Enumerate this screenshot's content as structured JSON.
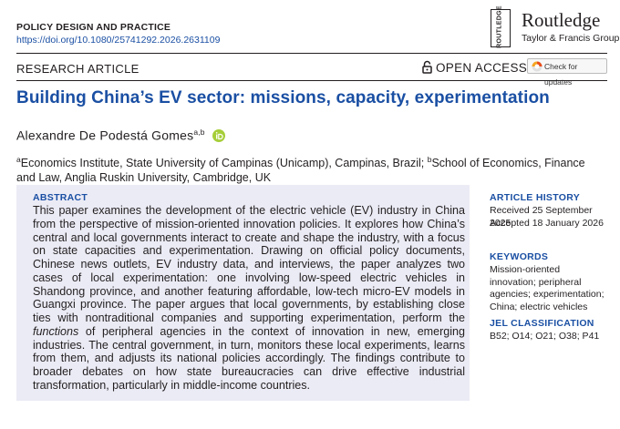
{
  "header": {
    "journal": "POLICY DESIGN AND PRACTICE",
    "doi": "https://doi.org/10.1080/25741292.2026.2631109"
  },
  "logo": {
    "mark": "ROUTLEDGE",
    "name": "Routledge",
    "subtitle": "Taylor & Francis Group"
  },
  "article": {
    "type": "RESEARCH ARTICLE",
    "access": "OPEN ACCESS",
    "update_button": "Check for updates",
    "title": "Building China’s EV sector: missions, capacity, experimentation",
    "author": {
      "name": "Alexandre De Podestá Gomes",
      "markers": "a,b"
    },
    "affiliations": [
      {
        "marker": "a",
        "text": "Economics Institute, State University of Campinas (Unicamp), Campinas, Brazil; "
      },
      {
        "marker": "b",
        "text": "School of Economics, Finance and Law, Anglia Ruskin University, Cambridge, UK"
      }
    ]
  },
  "abstract": {
    "label": "ABSTRACT",
    "text_before": "This paper examines the development of the electric vehicle (EV) industry in China from the perspective of mission-oriented innovation policies. It explores how China’s central and local governments interact to create and shape the industry, with a focus on state capacities and experimentation. Drawing on official policy documents, Chinese news outlets, EV industry data, and interviews, the paper analyzes two cases of local experimentation: one involving low-speed electric vehicles in Shandong province, and another featuring affordable, low-tech micro-EV models in Guangxi province. The paper argues that local governments, by establishing close ties with nontraditional companies and supporting experimentation, perform the ",
    "emphasis": "functions",
    "text_after": " of peripheral agencies in the context of innovation in new, emerging industries. The central government, in turn, monitors these local experiments, learns from them, and adjusts its national policies accordingly. The findings contribute to broader debates on how state bureaucracies can drive effective industrial transformation, particularly in middle-income countries."
  },
  "sidebar": {
    "history_label": "ARTICLE HISTORY",
    "received": "Received 25 September 2025",
    "accepted": "Accepted 18 January 2026",
    "keywords_label": "KEYWORDS",
    "keywords": "Mission-oriented innovation; peripheral agencies; experimentation; China; electric vehicles",
    "jel_label": "JEL CLASSIFICATION",
    "jel": "B52; O14; O21; O38; P41"
  }
}
